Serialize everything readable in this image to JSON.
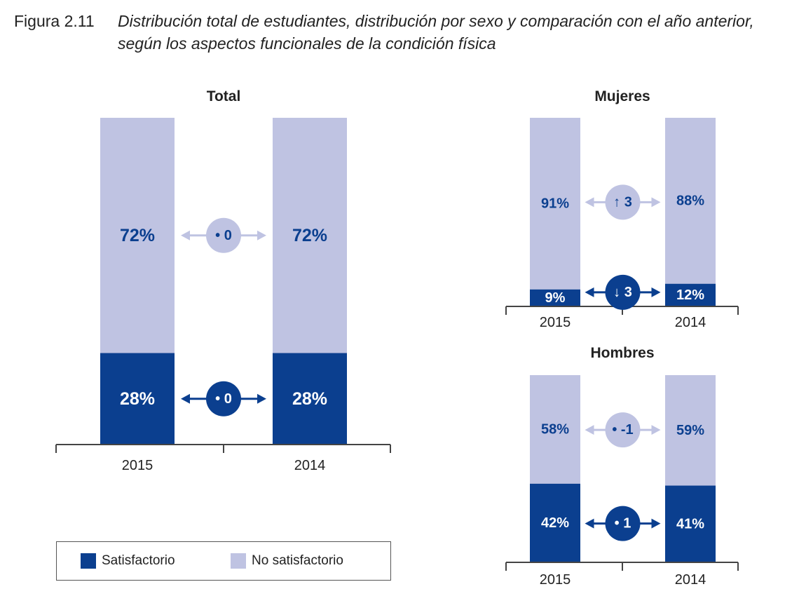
{
  "figure": {
    "number": "Figura 2.11",
    "title": "Distribución total de estudiantes, distribución por sexo y comparación con el año anterior, según los aspectos funcionales de la condición física"
  },
  "colors": {
    "satisfactorio": "#0b3f8f",
    "no_satisfactorio": "#bfc3e2",
    "label_on_light": "#0b3f8f",
    "label_on_dark": "#ffffff"
  },
  "legend": {
    "items": [
      {
        "label": "Satisfactorio",
        "color": "#0b3f8f"
      },
      {
        "label": "No satisfactorio",
        "color": "#bfc3e2"
      }
    ]
  },
  "chart_data": [
    {
      "type": "bar",
      "stacked": true,
      "title": "Total",
      "categories": [
        "2015",
        "2014"
      ],
      "series": [
        {
          "name": "Satisfactorio",
          "values": [
            28,
            28
          ],
          "labels": [
            "28%",
            "28%"
          ]
        },
        {
          "name": "No satisfactorio",
          "values": [
            72,
            72
          ],
          "labels": [
            "72%",
            "72%"
          ]
        }
      ],
      "comparisons": [
        {
          "series": "No satisfactorio",
          "label": "0",
          "symbol": "•"
        },
        {
          "series": "Satisfactorio",
          "label": "0",
          "symbol": "•"
        }
      ],
      "ylim": [
        0,
        100
      ]
    },
    {
      "type": "bar",
      "stacked": true,
      "title": "Mujeres",
      "categories": [
        "2015",
        "2014"
      ],
      "series": [
        {
          "name": "Satisfactorio",
          "values": [
            9,
            12
          ],
          "labels": [
            "9%",
            "12%"
          ]
        },
        {
          "name": "No satisfactorio",
          "values": [
            91,
            88
          ],
          "labels": [
            "91%",
            "88%"
          ]
        }
      ],
      "comparisons": [
        {
          "series": "No satisfactorio",
          "label": "3",
          "symbol": "↑"
        },
        {
          "series": "Satisfactorio",
          "label": "3",
          "symbol": "↓"
        }
      ],
      "ylim": [
        0,
        100
      ]
    },
    {
      "type": "bar",
      "stacked": true,
      "title": "Hombres",
      "categories": [
        "2015",
        "2014"
      ],
      "series": [
        {
          "name": "Satisfactorio",
          "values": [
            42,
            41
          ],
          "labels": [
            "42%",
            "41%"
          ]
        },
        {
          "name": "No satisfactorio",
          "values": [
            58,
            59
          ],
          "labels": [
            "58%",
            "59%"
          ]
        }
      ],
      "comparisons": [
        {
          "series": "No satisfactorio",
          "label": "-1",
          "symbol": "•"
        },
        {
          "series": "Satisfactorio",
          "label": "1",
          "symbol": "•"
        }
      ],
      "ylim": [
        0,
        100
      ]
    }
  ]
}
